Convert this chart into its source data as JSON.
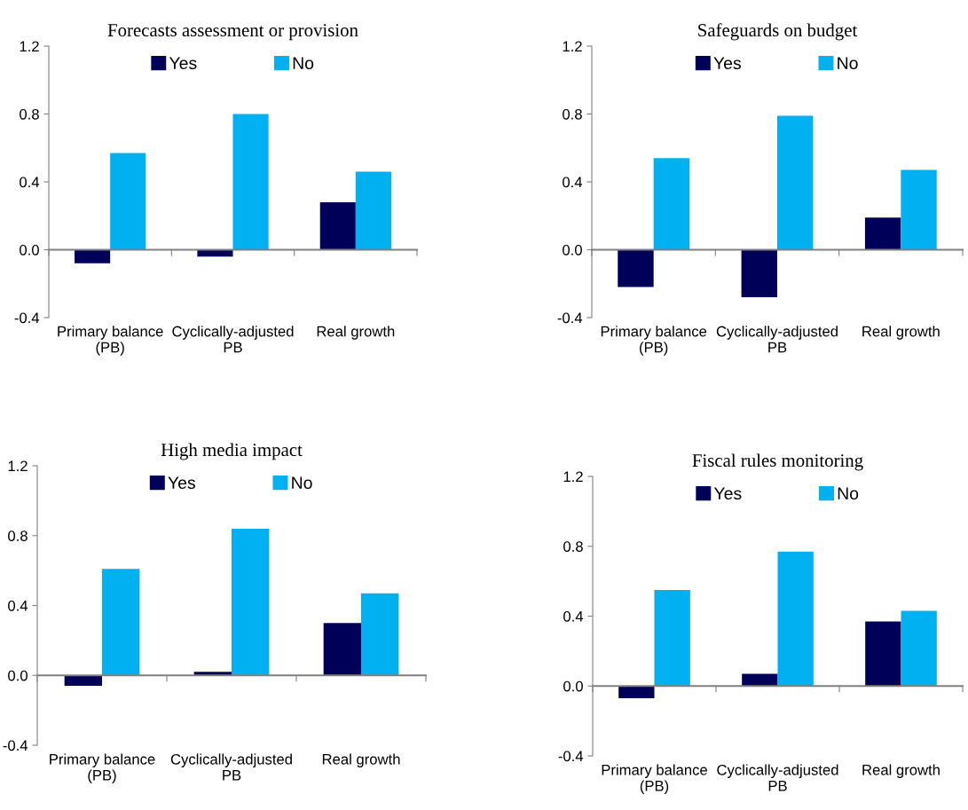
{
  "chart_data": [
    {
      "type": "bar",
      "title": "Forecasts assessment or provision",
      "categories": [
        "Primary balance\n(PB)",
        "Cyclically-adjusted\nPB",
        "Real growth"
      ],
      "series": [
        {
          "name": "Yes",
          "color": "#000058",
          "values": [
            -0.08,
            -0.04,
            0.28
          ]
        },
        {
          "name": "No",
          "color": "#00b0f0",
          "values": [
            0.57,
            0.8,
            0.46
          ]
        }
      ],
      "ylim": [
        -0.4,
        1.2
      ],
      "yticks": [
        {
          "value": -0.4,
          "label": "-0.4"
        },
        {
          "value": 0.0,
          "label": "0.0"
        },
        {
          "value": 0.4,
          "label": "0.4"
        },
        {
          "value": 0.8,
          "label": "0.8"
        },
        {
          "value": 1.2,
          "label": "1.2"
        }
      ],
      "legend": "top"
    },
    {
      "type": "bar",
      "title": "Safeguards on budget",
      "categories": [
        "Primary balance\n(PB)",
        "Cyclically-adjusted\nPB",
        "Real growth"
      ],
      "series": [
        {
          "name": "Yes",
          "color": "#000058",
          "values": [
            -0.22,
            -0.28,
            0.19
          ]
        },
        {
          "name": "No",
          "color": "#00b0f0",
          "values": [
            0.54,
            0.79,
            0.47
          ]
        }
      ],
      "ylim": [
        -0.4,
        1.2
      ],
      "yticks": [
        {
          "value": -0.4,
          "label": "-0.4"
        },
        {
          "value": 0.0,
          "label": "0.0"
        },
        {
          "value": 0.4,
          "label": "0.4"
        },
        {
          "value": 0.8,
          "label": "0.8"
        },
        {
          "value": 1.2,
          "label": "1.2"
        }
      ],
      "legend": "top"
    },
    {
      "type": "bar",
      "title": "High media impact",
      "categories": [
        "Primary balance\n(PB)",
        "Cyclically-adjusted\nPB",
        "Real growth"
      ],
      "series": [
        {
          "name": "Yes",
          "color": "#000058",
          "values": [
            -0.06,
            0.02,
            0.3
          ]
        },
        {
          "name": "No",
          "color": "#00b0f0",
          "values": [
            0.61,
            0.84,
            0.47
          ]
        }
      ],
      "ylim": [
        -0.4,
        1.2
      ],
      "yticks": [
        {
          "value": -0.4,
          "label": "-0.4"
        },
        {
          "value": 0.0,
          "label": "0.0"
        },
        {
          "value": 0.4,
          "label": "0.4"
        },
        {
          "value": 0.8,
          "label": "0.8"
        },
        {
          "value": 1.2,
          "label": "1.2"
        }
      ],
      "legend": "top"
    },
    {
      "type": "bar",
      "title": "Fiscal rules monitoring",
      "categories": [
        "Primary balance\n(PB)",
        "Cyclically-adjusted\nPB",
        "Real growth"
      ],
      "series": [
        {
          "name": "Yes",
          "color": "#000058",
          "values": [
            -0.07,
            0.07,
            0.37
          ]
        },
        {
          "name": "No",
          "color": "#00b0f0",
          "values": [
            0.55,
            0.77,
            0.43
          ]
        }
      ],
      "ylim": [
        -0.4,
        1.2
      ],
      "yticks": [
        {
          "value": -0.4,
          "label": "-0.4"
        },
        {
          "value": 0.0,
          "label": "0.0"
        },
        {
          "value": 0.4,
          "label": "0.4"
        },
        {
          "value": 0.8,
          "label": "0.8"
        },
        {
          "value": 1.2,
          "label": "1.2"
        }
      ],
      "legend": "top"
    }
  ]
}
